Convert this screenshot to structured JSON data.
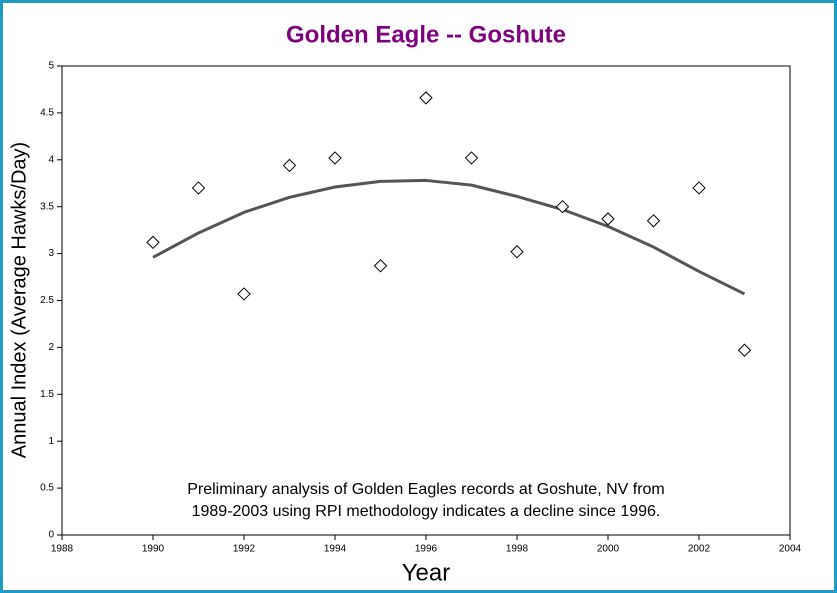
{
  "chart_data": {
    "type": "scatter",
    "title": "Golden Eagle -- Goshute",
    "x_label": "Year",
    "y_label": "Annual Index (Average Hawks/Day)",
    "annotation": [
      "Preliminary analysis of Golden Eagles records at Goshute, NV from",
      "1989-2003 using RPI methodology indicates a decline since 1996."
    ],
    "x": [
      1990,
      1991,
      1992,
      1993,
      1994,
      1995,
      1996,
      1997,
      1998,
      1999,
      2000,
      2001,
      2002,
      2003
    ],
    "values": [
      3.12,
      3.7,
      2.57,
      3.94,
      4.02,
      2.87,
      4.66,
      4.02,
      3.02,
      3.5,
      3.37,
      3.35,
      3.7,
      1.97
    ],
    "color": "#000000",
    "trend": {
      "x": [
        1990,
        1991,
        1992,
        1993,
        1994,
        1995,
        1996,
        1997,
        1998,
        1999,
        2000,
        2001,
        2002,
        2003
      ],
      "values": [
        2.96,
        3.22,
        3.44,
        3.6,
        3.71,
        3.77,
        3.78,
        3.73,
        3.61,
        3.47,
        3.29,
        3.07,
        2.81,
        2.57
      ],
      "color": "#555555"
    },
    "xlim": [
      1988,
      2004
    ],
    "xticks": [
      1988,
      1990,
      1992,
      1994,
      1996,
      1998,
      2000,
      2002,
      2004
    ],
    "ylim": [
      0,
      5
    ],
    "yticks": [
      0,
      0.5,
      1,
      1.5,
      2,
      2.5,
      3,
      3.5,
      4,
      4.5,
      5
    ]
  }
}
